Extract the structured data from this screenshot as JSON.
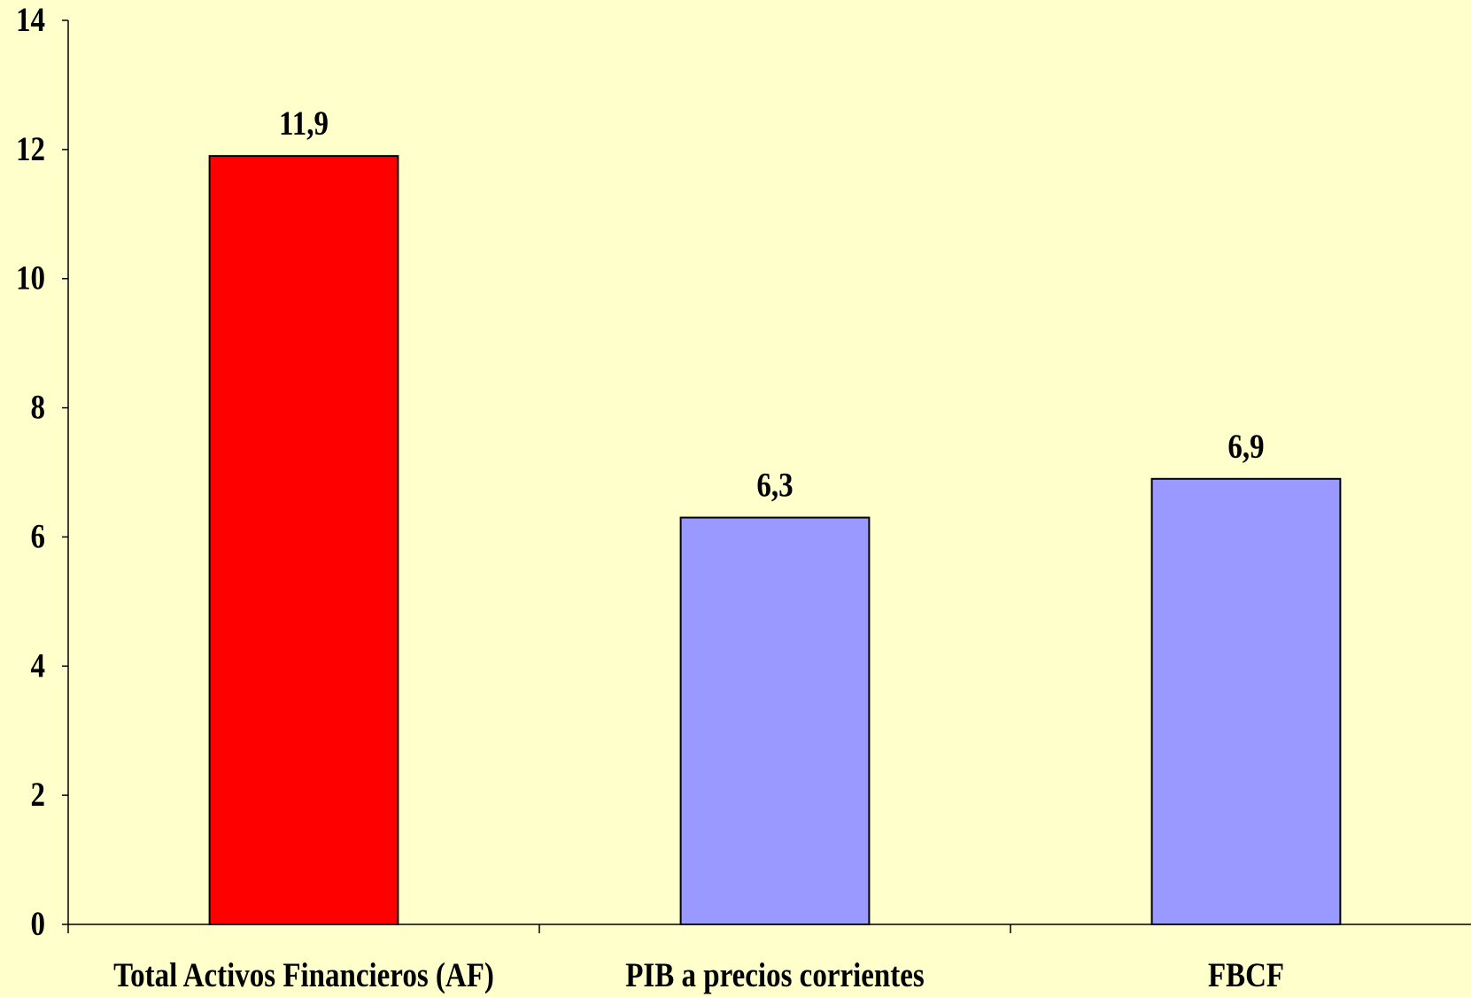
{
  "page": {
    "background": "#FFFFCC"
  },
  "chart_data": {
    "type": "bar",
    "categories": [
      "Total Activos Financieros (AF)",
      "PIB a precios corrientes",
      "FBCF"
    ],
    "values": [
      11.9,
      6.3,
      6.9
    ],
    "data_labels": [
      "11,9",
      "6,3",
      "6,9"
    ],
    "ylim": [
      0,
      14
    ],
    "yticks": [
      0,
      2,
      4,
      6,
      8,
      10,
      12,
      14
    ],
    "colors": [
      "#FF0000",
      "#9999FF",
      "#9999FF"
    ],
    "bar_outline": "#000000",
    "grid": false,
    "legend": "none"
  }
}
